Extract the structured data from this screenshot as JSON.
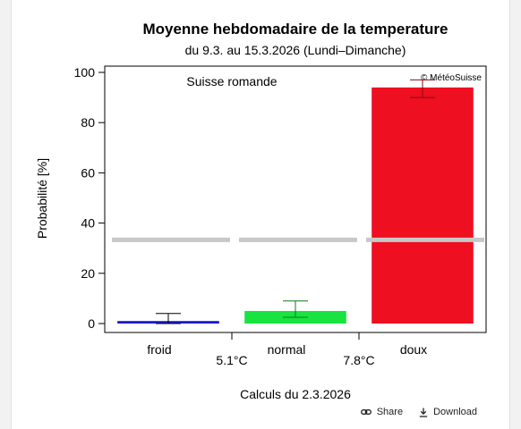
{
  "chart_data": {
    "type": "bar",
    "title": "Moyenne hebdomadaire de la temperature",
    "subtitle": "du 9.3. au 15.3.2026 (Lundi–Dimanche)",
    "ylabel": "Probabilité [%]",
    "xlabel": "Calculs du 2.3.2026",
    "region": "Suisse romande",
    "copyright": "© MétéoSuisse",
    "ylim": [
      0,
      104
    ],
    "yticks": [
      0,
      20,
      40,
      60,
      80,
      100
    ],
    "categories": [
      "froid",
      "normal",
      "doux"
    ],
    "values": [
      1,
      5,
      94
    ],
    "error_low": [
      0,
      2.5,
      90
    ],
    "error_high": [
      4,
      9,
      97
    ],
    "climatology": 33.3,
    "thresholds": [
      "5.1°C",
      "7.8°C"
    ],
    "colors": [
      "#1a1ad0",
      "#18e340",
      "#ee0f20"
    ],
    "error_colors": [
      "#000000",
      "#0c7a20",
      "#8a0a14"
    ],
    "climatology_color": "#c8c8c8"
  },
  "footer": {
    "share_label": "Share",
    "download_label": "Download"
  }
}
